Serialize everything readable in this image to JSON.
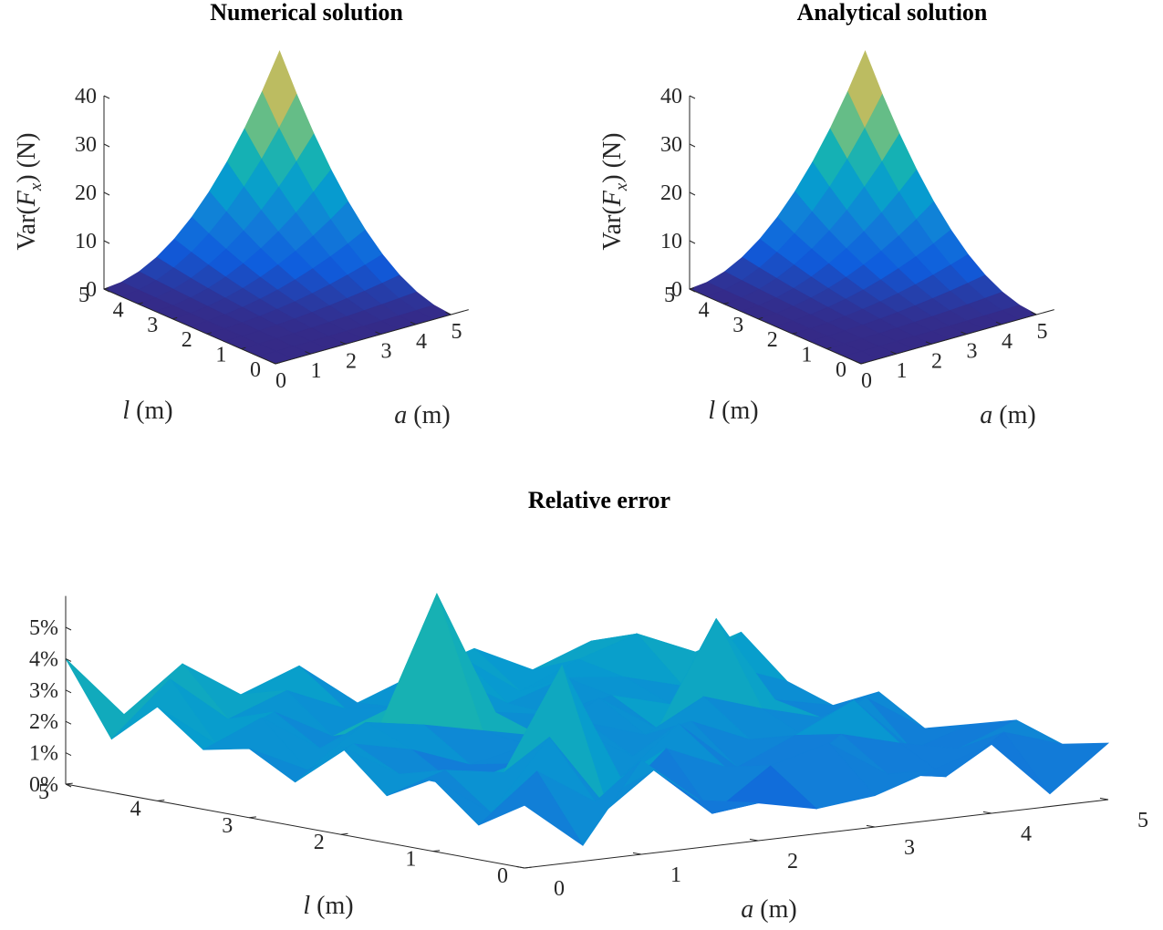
{
  "chart_data": [
    {
      "type": "surface",
      "title": "Numerical solution",
      "xlabel": "a (m)",
      "ylabel": "l (m)",
      "zlabel": "Var(F_x) (N)",
      "xlabel_parts": {
        "sym": "a",
        "unit": " (m)"
      },
      "ylabel_parts": {
        "sym": "l",
        "unit": " (m)"
      },
      "zlabel_parts": {
        "pre": "Var(",
        "sym": "F",
        "sub": "x",
        "post": ")  (N)"
      },
      "xlim": [
        0,
        5.5
      ],
      "ylim": [
        0,
        5
      ],
      "zlim": [
        0,
        40
      ],
      "x_ticks": [
        "0",
        "1",
        "2",
        "3",
        "4",
        "5"
      ],
      "y_ticks": [
        "0",
        "1",
        "2",
        "3",
        "4",
        "5"
      ],
      "z_ticks": [
        "0",
        "10",
        "20",
        "30",
        "40"
      ],
      "colormap": "parula",
      "surface": "z = a^2 * l^2 / 16 on 0 ≤ a ≤ 5, 0 ≤ l ≤ 5 (grid 0.5); max ≈ 39 at a = 5, l = 5"
    },
    {
      "type": "surface",
      "title": "Analytical solution",
      "xlabel": "a (m)",
      "ylabel": "l (m)",
      "zlabel": "Var(F_x) (N)",
      "xlabel_parts": {
        "sym": "a",
        "unit": " (m)"
      },
      "ylabel_parts": {
        "sym": "l",
        "unit": " (m)"
      },
      "zlabel_parts": {
        "pre": "Var(",
        "sym": "F",
        "sub": "x",
        "post": ")  (N)"
      },
      "xlim": [
        0,
        5.5
      ],
      "ylim": [
        0,
        5
      ],
      "zlim": [
        0,
        40
      ],
      "x_ticks": [
        "0",
        "1",
        "2",
        "3",
        "4",
        "5"
      ],
      "y_ticks": [
        "0",
        "1",
        "2",
        "3",
        "4",
        "5"
      ],
      "z_ticks": [
        "0",
        "10",
        "20",
        "30",
        "40"
      ],
      "colormap": "parula",
      "surface": "z = a^2 * l^2 / 16 on 0 ≤ a ≤ 5, 0 ≤ l ≤ 5 (grid 0.5); max ≈ 39 at a = 5, l = 5"
    },
    {
      "type": "surface",
      "title": "Relative error",
      "xlabel": "a (m)",
      "ylabel": "l (m)",
      "xlabel_parts": {
        "sym": "a",
        "unit": " (m)"
      },
      "ylabel_parts": {
        "sym": "l",
        "unit": " (m)"
      },
      "xlim": [
        0,
        5
      ],
      "ylim": [
        0,
        5
      ],
      "zlim": [
        0,
        6
      ],
      "x_ticks": [
        "0",
        "1",
        "2",
        "3",
        "4",
        "5"
      ],
      "y_ticks": [
        "0",
        "1",
        "2",
        "3",
        "4",
        "5"
      ],
      "z_ticks": [
        "0%",
        "1%",
        "2%",
        "3%",
        "4%",
        "5%"
      ],
      "colormap": "parula",
      "x": [
        0,
        0.5,
        1,
        1.5,
        2,
        2.5,
        3,
        3.5,
        4,
        4.5,
        5
      ],
      "y": [
        0,
        0.5,
        1,
        1.5,
        2,
        2.5,
        3,
        3.5,
        4,
        4.5,
        5
      ],
      "z_percent": [
        [
          2.0,
          0.5,
          3.0,
          1.5,
          1.2,
          0.8,
          1.0,
          1.6,
          2.2,
          0.4,
          1.8
        ],
        [
          1.1,
          2.6,
          1.4,
          2.2,
          0.6,
          1.9,
          2.4,
          1.2,
          0.9,
          2.1,
          1.5
        ],
        [
          2.3,
          1.0,
          3.2,
          0.7,
          2.4,
          1.6,
          0.9,
          2.2,
          1.7,
          1.3,
          2.0
        ],
        [
          1.5,
          2.1,
          1.8,
          5.0,
          1.2,
          2.7,
          1.1,
          1.9,
          2.8,
          1.0,
          1.6
        ],
        [
          2.8,
          1.7,
          1.1,
          1.6,
          2.5,
          1.4,
          2.3,
          1.5,
          1.3,
          2.4,
          1.2
        ],
        [
          1.4,
          2.4,
          2.0,
          1.3,
          1.7,
          2.2,
          1.6,
          2.6,
          2.0,
          1.5,
          2.1
        ],
        [
          2.2,
          1.3,
          2.6,
          2.3,
          1.9,
          1.5,
          2.5,
          1.3,
          4.6,
          1.8,
          1.4
        ],
        [
          1.9,
          2.7,
          1.5,
          1.9,
          6.0,
          2.0,
          1.7,
          2.1,
          1.6,
          2.6,
          1.9
        ],
        [
          3.0,
          1.6,
          2.4,
          1.4,
          2.1,
          2.9,
          1.8,
          2.4,
          2.2,
          1.7,
          3.2
        ],
        [
          1.7,
          3.4,
          1.9,
          2.6,
          1.8,
          1.6,
          3.0,
          1.7,
          2.5,
          3.1,
          2.3
        ],
        [
          4.0,
          2.0,
          3.4,
          2.2,
          2.9,
          1.5,
          2.2,
          2.8,
          1.9,
          2.6,
          1.8
        ]
      ]
    }
  ]
}
